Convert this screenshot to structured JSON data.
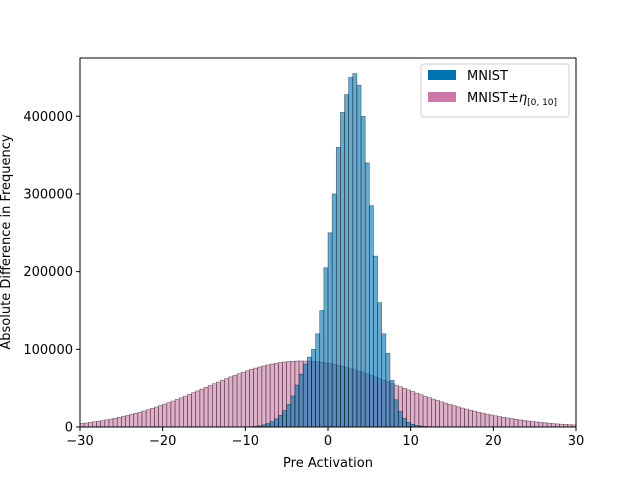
{
  "chart_data": {
    "type": "bar",
    "title": "",
    "xlabel": "Pre Activation",
    "ylabel": "Absolute Difference in Frequency",
    "xlim": [
      -30,
      30
    ],
    "ylim": [
      0,
      475000
    ],
    "x_ticks": [
      -30,
      -20,
      -10,
      0,
      10,
      20,
      30
    ],
    "x_tick_labels": [
      "−30",
      "−20",
      "−10",
      "0",
      "10",
      "20",
      "30"
    ],
    "y_ticks": [
      0,
      100000,
      200000,
      300000,
      400000
    ],
    "y_tick_labels": [
      "0",
      "100000",
      "200000",
      "300000",
      "400000"
    ],
    "grid": false,
    "legend_position": "top-right",
    "series": [
      {
        "name": "MNIST±η[0, 10]",
        "legend_main": "MNIST±",
        "legend_sym": "η",
        "legend_sub": "[0, 10]",
        "color": "#cc79a7",
        "bin_width": 0.5,
        "x_start": -30,
        "values": [
          4700,
          5200,
          5900,
          6700,
          7500,
          8300,
          9200,
          10200,
          11200,
          12300,
          13500,
          14800,
          16200,
          17600,
          19100,
          20600,
          22300,
          24000,
          25700,
          27600,
          29500,
          31400,
          33400,
          35500,
          37600,
          39800,
          42000,
          44200,
          46500,
          48800,
          51100,
          53400,
          55700,
          57900,
          60200,
          62400,
          64500,
          66600,
          68600,
          70600,
          72400,
          74200,
          75800,
          77300,
          78700,
          80000,
          81100,
          82100,
          83000,
          83700,
          84200,
          84600,
          84900,
          85000,
          84900,
          84700,
          84300,
          83800,
          83100,
          82300,
          81400,
          80400,
          79200,
          77900,
          76500,
          75000,
          73400,
          71700,
          69900,
          68100,
          66200,
          64200,
          62200,
          60100,
          58100,
          56000,
          53900,
          51800,
          49700,
          47700,
          45600,
          43600,
          41600,
          39700,
          37800,
          35900,
          34100,
          32400,
          30700,
          29000,
          27400,
          25900,
          24400,
          23000,
          21600,
          20300,
          19000,
          17800,
          16600,
          15500,
          14400,
          13400,
          12500,
          11600,
          10700,
          9900,
          9100,
          8400,
          7700,
          7100,
          6500,
          5900,
          5400,
          4900,
          4400,
          4000,
          3600,
          3300,
          3000,
          2700
        ]
      },
      {
        "name": "MNIST",
        "color": "#0072b2",
        "bin_width": 0.5,
        "x_start": -10,
        "values": [
          200,
          400,
          800,
          1500,
          2800,
          4500,
          7000,
          10500,
          15000,
          21000,
          29000,
          40000,
          54000,
          68000,
          81000,
          90000,
          100000,
          120000,
          150000,
          205000,
          250000,
          300000,
          360000,
          405000,
          428000,
          450000,
          455000,
          440000,
          400000,
          340000,
          285000,
          220000,
          160000,
          120000,
          95000,
          60000,
          35000,
          20000,
          11000,
          6000,
          3500,
          2000,
          1200,
          700,
          400,
          200
        ]
      }
    ]
  }
}
